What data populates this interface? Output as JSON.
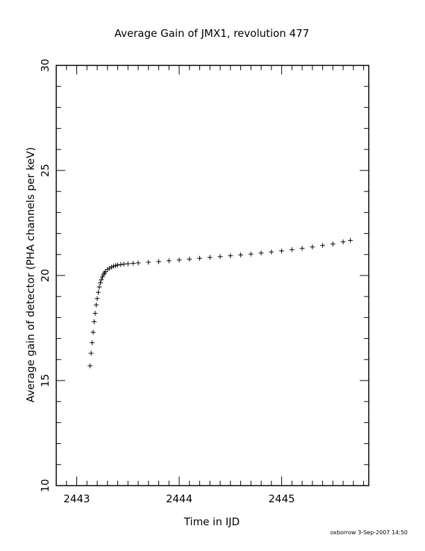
{
  "chart_data": {
    "type": "scatter",
    "title": "Average Gain of JMX1, revolution 477",
    "xlabel": "Time in IJD",
    "ylabel": "Average gain of detector (PHA channels per keV)",
    "xlim": [
      2442.8,
      2445.85
    ],
    "ylim": [
      10,
      30
    ],
    "x_ticks": [
      2443,
      2444,
      2445
    ],
    "x_tick_labels": [
      "2443",
      "2444",
      "2445"
    ],
    "y_ticks": [
      10,
      15,
      20,
      25,
      30
    ],
    "y_tick_labels": [
      "10",
      "15",
      "20",
      "25",
      "30"
    ],
    "marker": "plus",
    "grid": false,
    "series": [
      {
        "x": [
          2443.13,
          2443.14,
          2443.15,
          2443.16,
          2443.17,
          2443.18,
          2443.19,
          2443.2,
          2443.21,
          2443.22,
          2443.23,
          2443.24,
          2443.25,
          2443.26,
          2443.27,
          2443.28,
          2443.3,
          2443.32,
          2443.34,
          2443.36,
          2443.38,
          2443.4,
          2443.43,
          2443.46,
          2443.5,
          2443.55,
          2443.6,
          2443.7,
          2443.8,
          2443.9,
          2444.0,
          2444.1,
          2444.2,
          2444.3,
          2444.4,
          2444.5,
          2444.6,
          2444.7,
          2444.8,
          2444.9,
          2445.0,
          2445.1,
          2445.2,
          2445.3,
          2445.4,
          2445.5,
          2445.6,
          2445.67
        ],
        "y": [
          15.7,
          16.3,
          16.8,
          17.3,
          17.8,
          18.2,
          18.6,
          18.9,
          19.2,
          19.45,
          19.65,
          19.8,
          19.93,
          20.03,
          20.11,
          20.18,
          20.28,
          20.35,
          20.4,
          20.44,
          20.47,
          20.5,
          20.52,
          20.54,
          20.56,
          20.58,
          20.6,
          20.63,
          20.66,
          20.7,
          20.74,
          20.78,
          20.82,
          20.86,
          20.9,
          20.94,
          20.98,
          21.02,
          21.07,
          21.12,
          21.17,
          21.23,
          21.29,
          21.36,
          21.43,
          21.5,
          21.6,
          21.67
        ]
      }
    ]
  },
  "footer": {
    "credit": "oxborrow  3-Sep-2007 14:50"
  }
}
